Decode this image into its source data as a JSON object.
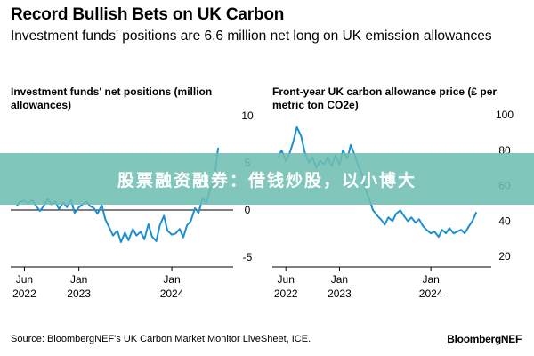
{
  "header": {
    "title": "Record Bullish Bets on UK Carbon",
    "subtitle": "Investment funds' positions are 6.6 million net long on UK emission allowances"
  },
  "banner": {
    "text": "股票融资融券：借钱炒股，以小博大"
  },
  "footer": {
    "source": "Source: BloombergNEF's UK Carbon Market Monitor LiveSheet, ICE.",
    "brand": "BloombergNEF"
  },
  "colors": {
    "line": "#1d8fd1",
    "axis": "#000000",
    "banner": "#6ebeb2"
  },
  "chart_data": [
    {
      "type": "line",
      "title": "Investment funds' net positions (million allowances)",
      "x_ticks": [
        {
          "date": "2022-06-01",
          "label": [
            "Jun",
            "2022"
          ]
        },
        {
          "date": "2023-01-01",
          "label": [
            "Jan",
            "2023"
          ]
        },
        {
          "date": "2024-01-01",
          "label": [
            "Jan",
            "2024"
          ]
        }
      ],
      "xlim": [
        "2022-04-15",
        "2024-08-15"
      ],
      "ylim": [
        -5,
        10
      ],
      "y_ticks": [
        10,
        5,
        0,
        -5
      ],
      "zero_line": 0,
      "series": [
        {
          "x": [
            "2022-05-01",
            "2022-05-15",
            "2022-06-01",
            "2022-06-15",
            "2022-07-01",
            "2022-07-15",
            "2022-08-01",
            "2022-08-15",
            "2022-09-01",
            "2022-09-15",
            "2022-10-01",
            "2022-10-15",
            "2022-11-01",
            "2022-11-15",
            "2022-12-01",
            "2022-12-15",
            "2023-01-01",
            "2023-01-15",
            "2023-02-01",
            "2023-02-15",
            "2023-03-01",
            "2023-03-15",
            "2023-04-01",
            "2023-04-15",
            "2023-05-01",
            "2023-05-15",
            "2023-06-01",
            "2023-06-15",
            "2023-07-01",
            "2023-07-15",
            "2023-08-01",
            "2023-08-15",
            "2023-09-01",
            "2023-09-15",
            "2023-10-01",
            "2023-10-15",
            "2023-11-01",
            "2023-11-15",
            "2023-12-01",
            "2023-12-15",
            "2024-01-01",
            "2024-01-15",
            "2024-02-01",
            "2024-02-15",
            "2024-03-01",
            "2024-03-15",
            "2024-04-01",
            "2024-04-15",
            "2024-05-01",
            "2024-05-15",
            "2024-06-01",
            "2024-06-15",
            "2024-07-01"
          ],
          "values": [
            0.4,
            0.9,
            1.0,
            0.7,
            1.1,
            0.5,
            -0.1,
            0.4,
            1.2,
            0.6,
            0.9,
            0.1,
            0.8,
            0.3,
            1.1,
            -0.3,
            0.3,
            0.6,
            0.9,
            0.4,
            0.2,
            -0.4,
            0.5,
            -1.0,
            -1.9,
            -2.7,
            -2.2,
            -3.4,
            -2.4,
            -3.2,
            -2.0,
            -2.7,
            -2.3,
            -3.1,
            -1.5,
            -2.8,
            -3.3,
            -1.6,
            -0.6,
            -2.2,
            -2.6,
            -2.5,
            -2.0,
            -2.9,
            -1.6,
            -1.2,
            0.2,
            -0.3,
            1.3,
            0.7,
            2.3,
            3.2,
            6.6
          ]
        }
      ]
    },
    {
      "type": "line",
      "title": "Front-year UK carbon allowance price (£ per metric ton CO2e)",
      "x_ticks": [
        {
          "date": "2022-06-01",
          "label": [
            "Jun",
            "2022"
          ]
        },
        {
          "date": "2023-01-01",
          "label": [
            "Jan",
            "2023"
          ]
        },
        {
          "date": "2024-01-01",
          "label": [
            "Jan",
            "2024"
          ]
        }
      ],
      "xlim": [
        "2022-04-15",
        "2024-08-15"
      ],
      "ylim": [
        20,
        100
      ],
      "y_ticks": [
        100,
        80,
        60,
        40,
        20
      ],
      "series": [
        {
          "x": [
            "2022-05-01",
            "2022-05-15",
            "2022-06-01",
            "2022-06-15",
            "2022-07-01",
            "2022-07-15",
            "2022-08-01",
            "2022-08-15",
            "2022-09-01",
            "2022-09-15",
            "2022-10-01",
            "2022-10-15",
            "2022-11-01",
            "2022-11-15",
            "2022-12-01",
            "2022-12-15",
            "2023-01-01",
            "2023-01-15",
            "2023-02-01",
            "2023-02-15",
            "2023-03-01",
            "2023-03-15",
            "2023-04-01",
            "2023-04-15",
            "2023-05-01",
            "2023-05-15",
            "2023-06-01",
            "2023-06-15",
            "2023-07-01",
            "2023-07-15",
            "2023-08-01",
            "2023-08-15",
            "2023-09-01",
            "2023-09-15",
            "2023-10-01",
            "2023-10-15",
            "2023-11-01",
            "2023-11-15",
            "2023-12-01",
            "2023-12-15",
            "2024-01-01",
            "2024-01-15",
            "2024-02-01",
            "2024-02-15",
            "2024-03-01",
            "2024-03-15",
            "2024-04-01",
            "2024-04-15",
            "2024-05-01",
            "2024-05-15",
            "2024-06-01",
            "2024-06-15",
            "2024-07-01"
          ],
          "values": [
            76,
            80,
            74,
            78,
            85,
            93,
            88,
            79,
            73,
            76,
            70,
            74,
            72,
            76,
            71,
            77,
            72,
            80,
            75,
            83,
            78,
            72,
            66,
            58,
            52,
            46,
            43,
            41,
            38,
            42,
            40,
            44,
            46,
            43,
            40,
            42,
            39,
            41,
            37,
            35,
            33,
            34,
            31,
            35,
            33,
            36,
            33,
            34,
            35,
            33,
            37,
            40,
            45
          ]
        }
      ]
    }
  ]
}
